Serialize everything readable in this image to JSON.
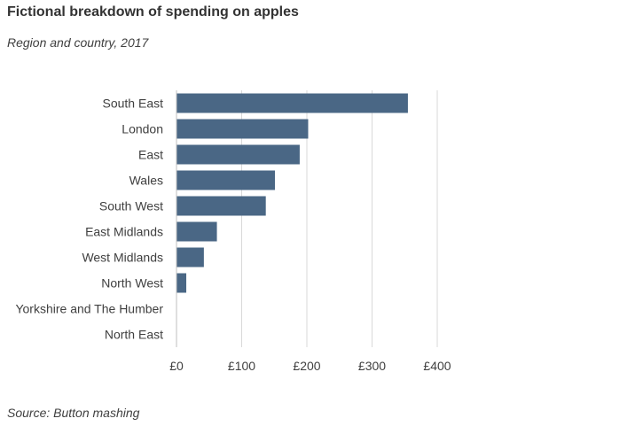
{
  "chart_data": {
    "type": "bar",
    "orientation": "horizontal",
    "title": "Fictional breakdown of spending on apples",
    "subtitle": "Region and country, 2017",
    "source": "Source: Button mashing",
    "categories": [
      "South East",
      "London",
      "East",
      "Wales",
      "South West",
      "East Midlands",
      "West Midlands",
      "North West",
      "Yorkshire and The Humber",
      "North East"
    ],
    "values": [
      355,
      202,
      189,
      151,
      137,
      62,
      42,
      15,
      0,
      0
    ],
    "xlim": [
      0,
      400
    ],
    "x_ticks": [
      0,
      100,
      200,
      300,
      400
    ],
    "x_tick_labels": [
      "£0",
      "£100",
      "£200",
      "£300",
      "£400"
    ],
    "xlabel": "",
    "ylabel": "",
    "grid": "vertical",
    "bar_color": "#4a6785",
    "grid_color": "#d9d9d9",
    "axis_color": "#bfbfbf"
  }
}
